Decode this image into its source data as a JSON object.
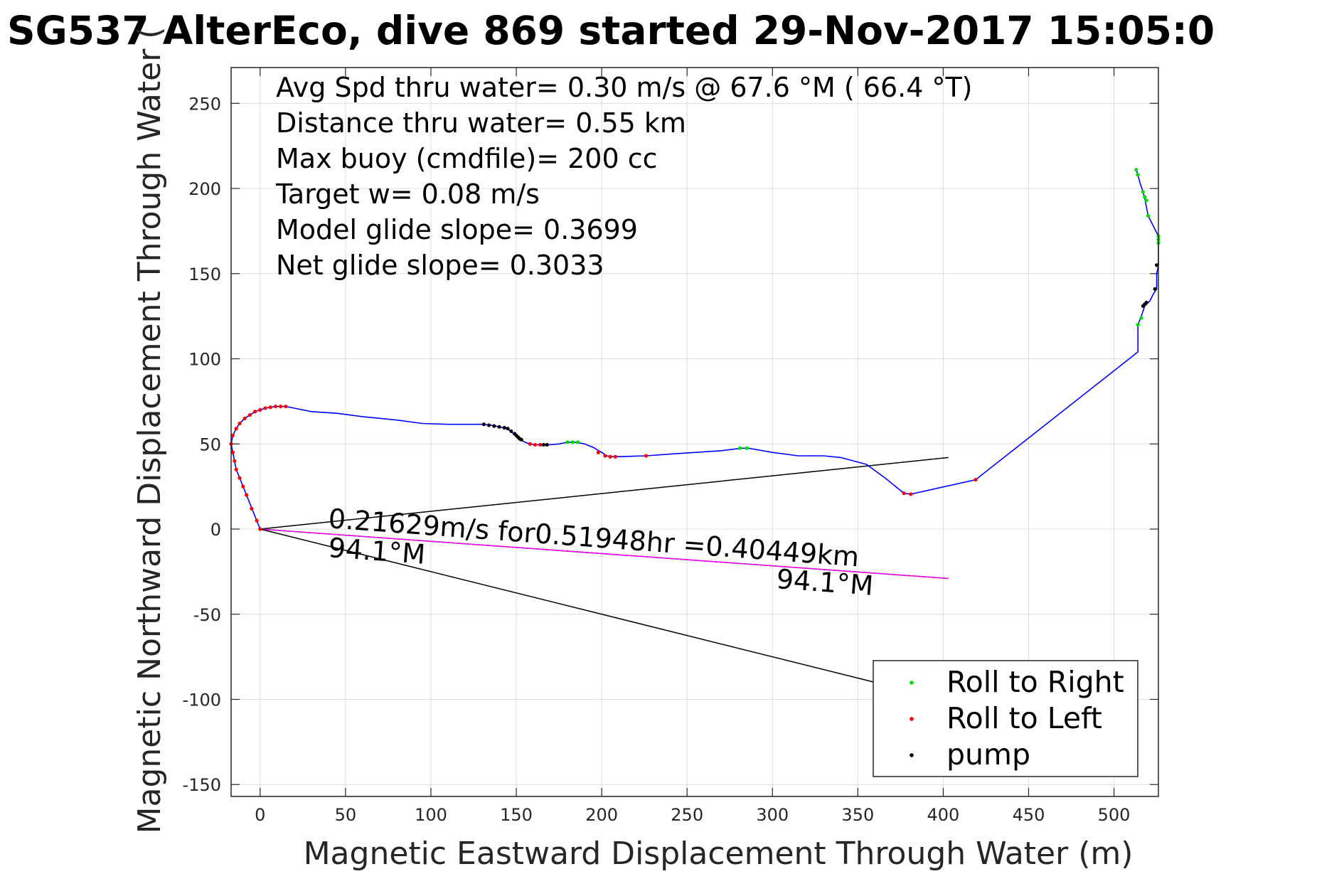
{
  "chart_data": {
    "type": "line",
    "title": "SG537 AlterEco, dive 869 started 29-Nov-2017 15:05:0",
    "xlabel": "Magnetic Eastward Displacement Through Water (m)",
    "ylabel": "Magnetic Northward Displacement Through Water (",
    "xlim": [
      -17,
      526
    ],
    "ylim": [
      -157,
      271
    ],
    "xticks": [
      0,
      50,
      100,
      150,
      200,
      250,
      300,
      350,
      400,
      450,
      500
    ],
    "yticks": [
      -150,
      -100,
      -50,
      0,
      50,
      100,
      150,
      200,
      250
    ],
    "grid": true,
    "colors": {
      "track": "#0000ff",
      "current": "#ff00ff",
      "lines": "#000000",
      "right": "#00dd00",
      "left": "#ff0000",
      "pump": "#000000"
    },
    "info_lines": [
      "Avg Spd thru water=  0.30 m/s @  67.6 °M ( 66.4 °T)",
      "Distance thru water=  0.55 km",
      "Max buoy (cmdfile)= 200 cc",
      "Target w= 0.08 m/s",
      "Model glide slope= 0.3699",
      "Net glide slope= 0.3033"
    ],
    "current_annotation": "0.21629m/s for0.51948hr =0.40449km",
    "heading_label_start": "94.1°M",
    "heading_label_end": "94.1°M",
    "legend": {
      "position": "bottom-right",
      "entries": [
        "Roll to Right",
        "Roll to Left",
        "pump"
      ]
    },
    "series": [
      {
        "name": "track",
        "points": [
          [
            0,
            0
          ],
          [
            -2,
            5
          ],
          [
            -4,
            10
          ],
          [
            -6,
            15
          ],
          [
            -8,
            20
          ],
          [
            -10,
            25
          ],
          [
            -12,
            30
          ],
          [
            -14,
            35
          ],
          [
            -15,
            40
          ],
          [
            -16,
            45
          ],
          [
            -17,
            50
          ],
          [
            -16,
            55
          ],
          [
            -14,
            59
          ],
          [
            -12,
            62
          ],
          [
            -9,
            65
          ],
          [
            -6,
            67
          ],
          [
            -3,
            69
          ],
          [
            0,
            70
          ],
          [
            3,
            71
          ],
          [
            6,
            71.5
          ],
          [
            9,
            72
          ],
          [
            12,
            72
          ],
          [
            15,
            72
          ],
          [
            20,
            71
          ],
          [
            30,
            69
          ],
          [
            45,
            68
          ],
          [
            60,
            66
          ],
          [
            80,
            64
          ],
          [
            95,
            62
          ],
          [
            110,
            61.5
          ],
          [
            120,
            61.5
          ],
          [
            130,
            61.5
          ],
          [
            135,
            61
          ],
          [
            140,
            60
          ],
          [
            145,
            59
          ],
          [
            147,
            57
          ],
          [
            150,
            55
          ],
          [
            152,
            53
          ],
          [
            155,
            51
          ],
          [
            158,
            50
          ],
          [
            161,
            49.5
          ],
          [
            165,
            49.5
          ],
          [
            169,
            49.5
          ],
          [
            175,
            50
          ],
          [
            180,
            51
          ],
          [
            185,
            51
          ],
          [
            190,
            50
          ],
          [
            195,
            48
          ],
          [
            200,
            45
          ],
          [
            203,
            43
          ],
          [
            206,
            42.5
          ],
          [
            210,
            42.5
          ],
          [
            226,
            43
          ],
          [
            240,
            44
          ],
          [
            255,
            45
          ],
          [
            270,
            46
          ],
          [
            282,
            47.5
          ],
          [
            286,
            47.5
          ],
          [
            300,
            45
          ],
          [
            315,
            43
          ],
          [
            330,
            43
          ],
          [
            340,
            42
          ],
          [
            355,
            38
          ],
          [
            366,
            30
          ],
          [
            377,
            21
          ],
          [
            381,
            20.5
          ],
          [
            419,
            29
          ],
          [
            514,
            104
          ],
          [
            514,
            120
          ],
          [
            516,
            125
          ],
          [
            518,
            131
          ],
          [
            521,
            134
          ],
          [
            523,
            138
          ],
          [
            525,
            141
          ],
          [
            525,
            145
          ],
          [
            525,
            150
          ],
          [
            526,
            155
          ],
          [
            526,
            162
          ],
          [
            526,
            168
          ],
          [
            526,
            172
          ],
          [
            520,
            184
          ],
          [
            518,
            194
          ],
          [
            517,
            198
          ],
          [
            515,
            204
          ],
          [
            514,
            208
          ],
          [
            513,
            211
          ]
        ]
      },
      {
        "name": "Roll to Right",
        "points": [
          [
            513,
            211
          ],
          [
            514,
            208
          ],
          [
            517,
            198
          ],
          [
            518,
            195
          ],
          [
            519,
            193
          ],
          [
            520,
            184
          ],
          [
            526,
            172
          ],
          [
            526,
            170
          ],
          [
            526,
            168
          ],
          [
            514,
            120
          ],
          [
            516,
            124
          ],
          [
            180,
            51
          ],
          [
            183,
            51
          ],
          [
            186,
            51
          ],
          [
            281,
            47.5
          ],
          [
            285,
            47.5
          ]
        ]
      },
      {
        "name": "Roll to Left",
        "points": [
          [
            0,
            0
          ],
          [
            -2,
            5
          ],
          [
            -5,
            12
          ],
          [
            -8,
            20
          ],
          [
            -10,
            25
          ],
          [
            -12,
            30
          ],
          [
            -14,
            35
          ],
          [
            -15,
            40
          ],
          [
            -16,
            45
          ],
          [
            -17,
            50
          ],
          [
            -16,
            55
          ],
          [
            -14,
            59
          ],
          [
            -12,
            62
          ],
          [
            -9,
            65
          ],
          [
            -6,
            67
          ],
          [
            -3,
            69
          ],
          [
            0,
            70
          ],
          [
            3,
            71
          ],
          [
            6,
            71.5
          ],
          [
            9,
            72
          ],
          [
            12,
            72
          ],
          [
            15,
            72
          ],
          [
            158,
            50
          ],
          [
            161,
            49.5
          ],
          [
            164,
            49.5
          ],
          [
            198,
            45
          ],
          [
            202,
            43
          ],
          [
            205,
            42.5
          ],
          [
            208,
            42.5
          ],
          [
            226,
            43
          ],
          [
            377,
            21
          ],
          [
            381,
            20.5
          ],
          [
            419,
            29
          ]
        ]
      },
      {
        "name": "pump",
        "points": [
          [
            131,
            61.5
          ],
          [
            134,
            61
          ],
          [
            137,
            60.5
          ],
          [
            140,
            60
          ],
          [
            143,
            59.5
          ],
          [
            145,
            59
          ],
          [
            147,
            57.5
          ],
          [
            149,
            56
          ],
          [
            150,
            55
          ],
          [
            151,
            54
          ],
          [
            152,
            53
          ],
          [
            153,
            52.5
          ],
          [
            166,
            49.5
          ],
          [
            168,
            49.5
          ],
          [
            517,
            131
          ],
          [
            518,
            132
          ],
          [
            519,
            133
          ],
          [
            524,
            141
          ],
          [
            525,
            155
          ]
        ]
      }
    ],
    "reference_lines": [
      {
        "name": "upper-heading-line",
        "from": [
          0,
          0
        ],
        "to": [
          403,
          42
        ]
      },
      {
        "name": "lower-heading-line",
        "from": [
          0,
          0
        ],
        "to": [
          403,
          -29
        ]
      },
      {
        "name": "current-line",
        "from": [
          0,
          0
        ],
        "to": [
          403,
          -29
        ]
      },
      {
        "name": "long-heading-line",
        "from": [
          0,
          0
        ],
        "to": [
          380,
          -95
        ]
      }
    ]
  }
}
